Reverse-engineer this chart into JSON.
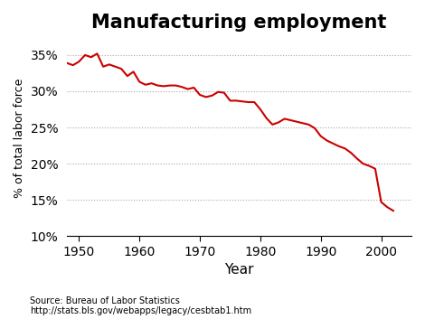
{
  "title": "Manufacturing employment",
  "xlabel": "Year",
  "ylabel": "% of total labor force",
  "xlim": [
    1948,
    2005
  ],
  "ylim": [
    0.1,
    0.37
  ],
  "yticks": [
    0.1,
    0.15,
    0.2,
    0.25,
    0.3,
    0.35
  ],
  "xticks": [
    1950,
    1960,
    1970,
    1980,
    1990,
    2000
  ],
  "line_color": "#cc0000",
  "background_color": "#ffffff",
  "source_line1": "Source: Bureau of Labor Statistics",
  "source_line2": "http://stats.bls.gov/webapps/legacy/cesbtab1.htm",
  "years": [
    1948,
    1949,
    1950,
    1951,
    1952,
    1953,
    1954,
    1955,
    1956,
    1957,
    1958,
    1959,
    1960,
    1961,
    1962,
    1963,
    1964,
    1965,
    1966,
    1967,
    1968,
    1969,
    1970,
    1971,
    1972,
    1973,
    1974,
    1975,
    1976,
    1977,
    1978,
    1979,
    1980,
    1981,
    1982,
    1983,
    1984,
    1985,
    1986,
    1987,
    1988,
    1989,
    1990,
    1991,
    1992,
    1993,
    1994,
    1995,
    1996,
    1997,
    1998,
    1999,
    2000,
    2001,
    2002
  ],
  "values": [
    0.339,
    0.336,
    0.341,
    0.35,
    0.347,
    0.352,
    0.334,
    0.337,
    0.334,
    0.331,
    0.321,
    0.327,
    0.313,
    0.309,
    0.311,
    0.308,
    0.307,
    0.308,
    0.308,
    0.306,
    0.303,
    0.305,
    0.295,
    0.292,
    0.294,
    0.299,
    0.298,
    0.287,
    0.287,
    0.286,
    0.285,
    0.285,
    0.275,
    0.263,
    0.254,
    0.257,
    0.262,
    0.26,
    0.258,
    0.256,
    0.254,
    0.249,
    0.238,
    0.232,
    0.228,
    0.224,
    0.221,
    0.215,
    0.207,
    0.2,
    0.197,
    0.193,
    0.147,
    0.14,
    0.135
  ]
}
